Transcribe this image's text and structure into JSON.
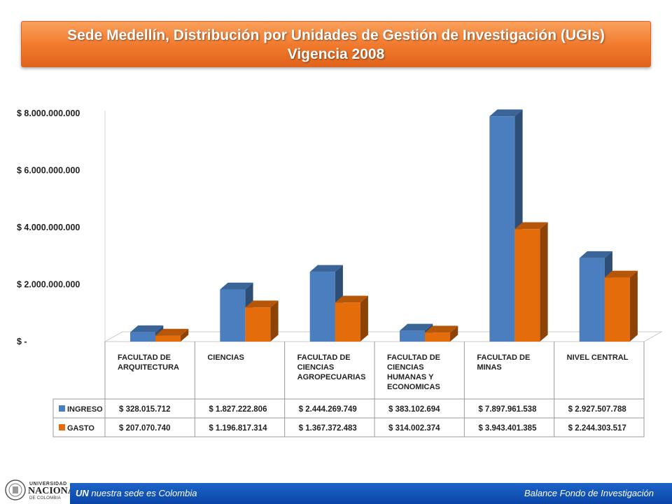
{
  "title": {
    "line1": "Sede Medellín, Distribución por Unidades de Gestión de Investigación (UGIs)",
    "line2": "Vigencia 2008"
  },
  "chart_data": {
    "type": "bar",
    "categories": [
      [
        "FACULTAD DE",
        "ARQUITECTURA"
      ],
      [
        "CIENCIAS"
      ],
      [
        "FACULTAD DE",
        "CIENCIAS",
        "AGROPECUARIAS"
      ],
      [
        "FACULTAD DE",
        "CIENCIAS",
        "HUMANAS  Y",
        "ECONOMICAS"
      ],
      [
        "FACULTAD DE",
        "MINAS"
      ],
      [
        "NIVEL CENTRAL"
      ]
    ],
    "series": [
      {
        "name": "INGRESO",
        "color": "#4a7ebf",
        "values": [
          328015712,
          1827222806,
          2444269749,
          383102694,
          7897961538,
          2927507788
        ],
        "labels": [
          "$ 328.015.712",
          "$ 1.827.222.806",
          "$ 2.444.269.749",
          "$ 383.102.694",
          "$ 7.897.961.538",
          "$ 2.927.507.788"
        ]
      },
      {
        "name": "GASTO",
        "color": "#e46c0a",
        "values": [
          207070740,
          1196817314,
          1367372483,
          314002374,
          3943401385,
          2244303517
        ],
        "labels": [
          "$ 207.070.740",
          "$ 1.196.817.314",
          "$ 1.367.372.483",
          "$ 314.002.374",
          "$ 3.943.401.385",
          "$ 2.244.303.517"
        ]
      }
    ],
    "yticks": [
      0,
      2000000000,
      4000000000,
      6000000000,
      8000000000
    ],
    "ytick_labels": [
      "$ -",
      "$ 2.000.000.000",
      "$ 4.000.000.000",
      "$ 6.000.000.000",
      "$ 8.000.000.000"
    ],
    "ylim": [
      0,
      8000000000
    ],
    "grid": false,
    "legend": "data-table",
    "style": "3d-clustered-column"
  },
  "footer": {
    "brand": "UN",
    "tagline": "nuestra sede es Colombia",
    "right_text": "Balance Fondo de Investigación"
  },
  "logo": {
    "line1": "UNIVERSIDAD",
    "line2": "NACIONAL",
    "line3": "DE COLOMBIA"
  }
}
